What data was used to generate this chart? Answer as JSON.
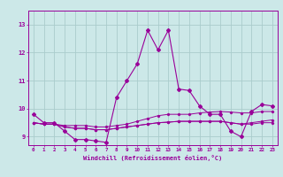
{
  "xlabel": "Windchill (Refroidissement éolien,°C)",
  "background_color": "#cce8e8",
  "grid_color": "#aacccc",
  "line_color": "#990099",
  "x": [
    0,
    1,
    2,
    3,
    4,
    5,
    6,
    7,
    8,
    9,
    10,
    11,
    12,
    13,
    14,
    15,
    16,
    17,
    18,
    19,
    20,
    21,
    22,
    23
  ],
  "line1": [
    9.8,
    9.5,
    9.5,
    9.2,
    8.9,
    8.9,
    8.85,
    8.8,
    10.4,
    11.0,
    11.6,
    12.8,
    12.1,
    12.8,
    10.7,
    10.65,
    10.1,
    9.8,
    9.8,
    9.2,
    9.0,
    9.9,
    10.15,
    10.1
  ],
  "line2": [
    9.5,
    9.45,
    9.45,
    9.4,
    9.4,
    9.4,
    9.35,
    9.35,
    9.4,
    9.45,
    9.55,
    9.65,
    9.75,
    9.8,
    9.8,
    9.8,
    9.85,
    9.88,
    9.9,
    9.88,
    9.85,
    9.85,
    9.9,
    9.9
  ],
  "line3": [
    9.5,
    9.45,
    9.45,
    9.35,
    9.3,
    9.3,
    9.25,
    9.25,
    9.3,
    9.35,
    9.4,
    9.45,
    9.5,
    9.52,
    9.55,
    9.55,
    9.55,
    9.55,
    9.55,
    9.5,
    9.45,
    9.45,
    9.5,
    9.5
  ],
  "line4": [
    9.5,
    9.45,
    9.45,
    9.35,
    9.3,
    9.3,
    9.25,
    9.25,
    9.3,
    9.35,
    9.4,
    9.45,
    9.5,
    9.52,
    9.55,
    9.55,
    9.55,
    9.55,
    9.55,
    9.5,
    9.45,
    9.5,
    9.55,
    9.6
  ],
  "ylim": [
    8.7,
    13.5
  ],
  "xlim": [
    -0.5,
    23.5
  ],
  "yticks": [
    9,
    10,
    11,
    12,
    13
  ],
  "xticks": [
    0,
    1,
    2,
    3,
    4,
    5,
    6,
    7,
    8,
    9,
    10,
    11,
    12,
    13,
    14,
    15,
    16,
    17,
    18,
    19,
    20,
    21,
    22,
    23
  ]
}
